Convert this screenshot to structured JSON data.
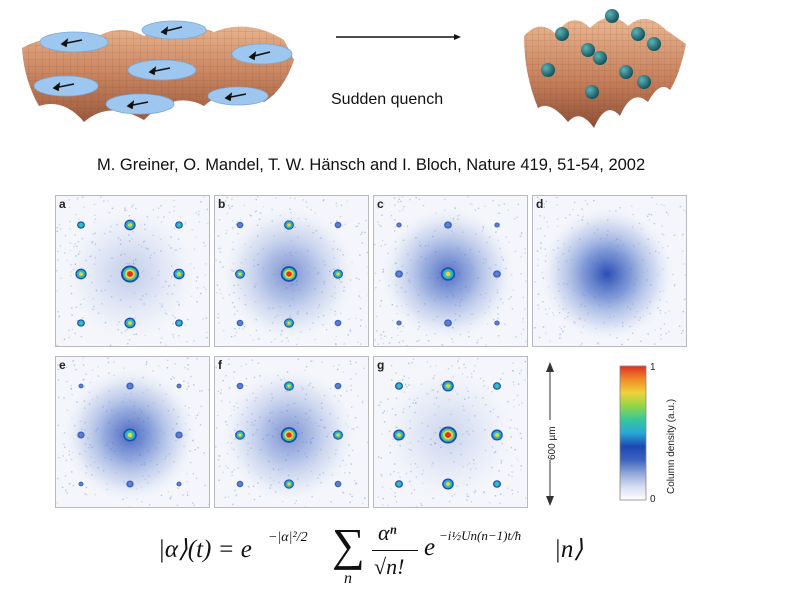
{
  "top": {
    "arrow_label": "Sudden quench",
    "citation": "M. Greiner, O. Mandel, T. W. Hänsch and I. Bloch, Nature 419, 51-54, 2002"
  },
  "panels": [
    {
      "label": "a",
      "halo": 0.25,
      "peak": 1.0,
      "side": 0.75
    },
    {
      "label": "b",
      "halo": 0.6,
      "peak": 0.85,
      "side": 0.55
    },
    {
      "label": "c",
      "halo": 0.8,
      "peak": 0.6,
      "side": 0.25
    },
    {
      "label": "d",
      "halo": 1.0,
      "peak": 0.0,
      "side": 0.0
    },
    {
      "label": "e",
      "halo": 0.85,
      "peak": 0.55,
      "side": 0.2
    },
    {
      "label": "f",
      "halo": 0.6,
      "peak": 0.85,
      "side": 0.55
    },
    {
      "label": "g",
      "halo": 0.2,
      "peak": 1.0,
      "side": 0.8
    }
  ],
  "scale": {
    "label": "600 µm"
  },
  "colorbar": {
    "max": "1",
    "min": "0",
    "label": "Column density (a.u.)",
    "colors": [
      "#ffffff",
      "#d6dcf0",
      "#8fa6d8",
      "#3d62c0",
      "#1e48b2",
      "#2aa7d6",
      "#37c79a",
      "#8fd64a",
      "#f0d238",
      "#f08a2a",
      "#e03020"
    ]
  },
  "formula": {
    "lhs": "|α⟩(t) = e",
    "exp1": "−|α|²/2",
    "sum": "∑",
    "sum_index": "n",
    "frac_num": "αⁿ",
    "frac_den": "√n!",
    "e2": "e",
    "exp2": "−i½Un(n−1)t/ħ",
    "ket": "|n⟩"
  }
}
